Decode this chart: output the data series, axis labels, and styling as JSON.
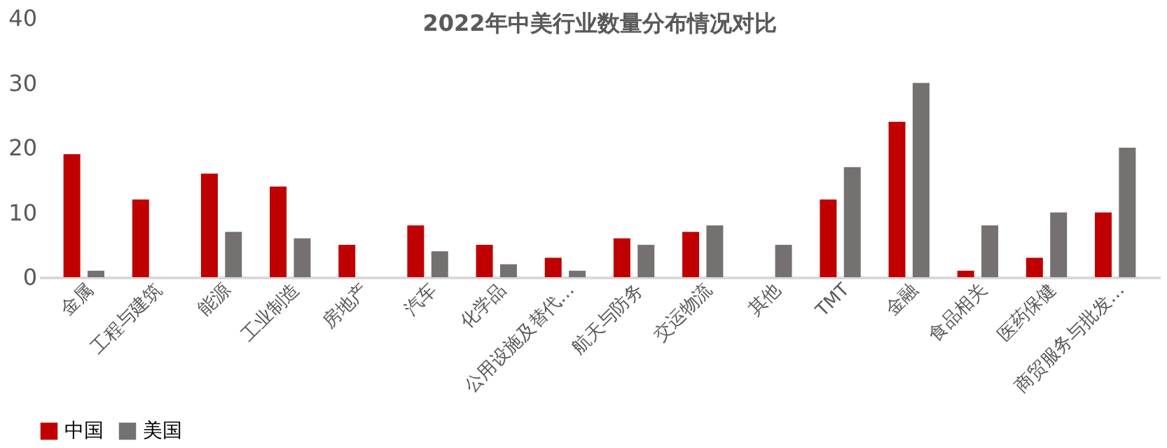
{
  "chart_data": {
    "type": "bar",
    "title": "2022年中美行业数量分布情况对比",
    "categories": [
      "金属",
      "工程与建筑",
      "能源",
      "工业制造",
      "房地产",
      "汽车",
      "化学品",
      "公用设施及替代…",
      "航天与防务",
      "交运物流",
      "其他",
      "TMT",
      "金融",
      "食品相关",
      "医药保健",
      "商贸服务与批发…"
    ],
    "series": [
      {
        "name": "中国",
        "color": "#c00000",
        "values": [
          19,
          12,
          16,
          14,
          5,
          8,
          5,
          3,
          6,
          7,
          0,
          12,
          24,
          1,
          3,
          10
        ]
      },
      {
        "name": "美国",
        "color": "#767171",
        "values": [
          1,
          0,
          7,
          6,
          0,
          4,
          2,
          1,
          5,
          8,
          5,
          17,
          30,
          8,
          10,
          20
        ]
      }
    ],
    "ylim": [
      0,
      40
    ],
    "yticks": [
      0,
      10,
      20,
      30,
      40
    ],
    "grid": false,
    "legend": "bottom"
  }
}
